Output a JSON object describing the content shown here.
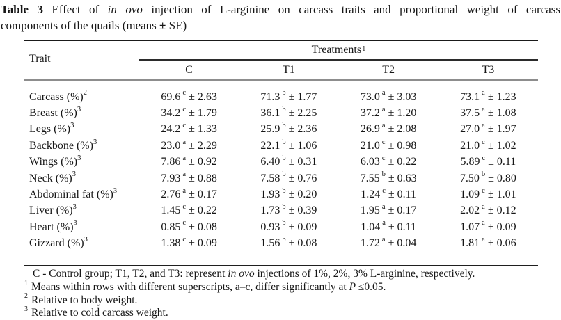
{
  "caption": {
    "label": "Table 3",
    "line1_pre": " Effect of ",
    "line1_italic": "in ovo",
    "line1_post": " injection of L-arginine on carcass traits and proportional weight of carcass",
    "line2_pre": "components of the quails (means ",
    "line2_bold": "±",
    "line2_post": " SE)"
  },
  "header": {
    "trait": "Trait",
    "treatments": "Treatments",
    "treatments_sup": "1",
    "columns": [
      "C",
      "T1",
      "T2",
      "T3"
    ]
  },
  "pm": "±",
  "rows": [
    {
      "trait": "Carcass (%)",
      "trait_sup": "2",
      "cells": [
        {
          "mean": "69.6",
          "sup": "c",
          "se": "2.63"
        },
        {
          "mean": "71.3",
          "sup": "b",
          "se": "1.77"
        },
        {
          "mean": "73.0",
          "sup": "a",
          "se": "3.03"
        },
        {
          "mean": "73.1",
          "sup": "a",
          "se": "1.23"
        }
      ]
    },
    {
      "trait": "Breast (%)",
      "trait_sup": "3",
      "cells": [
        {
          "mean": "34.2",
          "sup": "c",
          "se": "1.79"
        },
        {
          "mean": "36.1",
          "sup": "b",
          "se": "2.25"
        },
        {
          "mean": "37.2",
          "sup": "a",
          "se": "1.20"
        },
        {
          "mean": "37.5",
          "sup": "a",
          "se": "1.08"
        }
      ]
    },
    {
      "trait": "Legs (%)",
      "trait_sup": "3",
      "cells": [
        {
          "mean": "24.2",
          "sup": "c",
          "se": "1.33"
        },
        {
          "mean": "25.9",
          "sup": "b",
          "se": "2.36"
        },
        {
          "mean": "26.9",
          "sup": "a",
          "se": "2.08"
        },
        {
          "mean": "27.0",
          "sup": "a",
          "se": "1.97"
        }
      ]
    },
    {
      "trait": "Backbone (%)",
      "trait_sup": "3",
      "cells": [
        {
          "mean": "23.0",
          "sup": "a",
          "se": "2.29"
        },
        {
          "mean": "22.1",
          "sup": "b",
          "se": "1.06"
        },
        {
          "mean": "21.0",
          "sup": "c",
          "se": "0.98"
        },
        {
          "mean": "21.0",
          "sup": "c",
          "se": "1.02"
        }
      ]
    },
    {
      "trait": "Wings (%)",
      "trait_sup": "3",
      "cells": [
        {
          "mean": "7.86",
          "sup": "a",
          "se": "0.92"
        },
        {
          "mean": "6.40",
          "sup": "b",
          "se": "0.31"
        },
        {
          "mean": "6.03",
          "sup": "c",
          "se": "0.22"
        },
        {
          "mean": "5.89",
          "sup": "c",
          "se": "0.11"
        }
      ]
    },
    {
      "trait": "Neck (%)",
      "trait_sup": "3",
      "cells": [
        {
          "mean": "7.93",
          "sup": "a",
          "se": "0.88"
        },
        {
          "mean": "7.58",
          "sup": "b",
          "se": "0.76"
        },
        {
          "mean": "7.55",
          "sup": "b",
          "se": "0.63"
        },
        {
          "mean": "7.50",
          "sup": "b",
          "se": "0.80"
        }
      ]
    },
    {
      "trait": "Abdominal fat (%)",
      "trait_sup": "3",
      "cells": [
        {
          "mean": "2.76",
          "sup": "a",
          "se": "0.17"
        },
        {
          "mean": "1.93",
          "sup": "b",
          "se": "0.20"
        },
        {
          "mean": "1.24",
          "sup": "c",
          "se": "0.11"
        },
        {
          "mean": "1.09",
          "sup": "c",
          "se": "1.01"
        }
      ]
    },
    {
      "trait": "Liver (%)",
      "trait_sup": "3",
      "cells": [
        {
          "mean": "1.45",
          "sup": "c",
          "se": "0.22"
        },
        {
          "mean": "1.73",
          "sup": "b",
          "se": "0.39"
        },
        {
          "mean": "1.95",
          "sup": "a",
          "se": "0.17"
        },
        {
          "mean": "2.02",
          "sup": "a",
          "se": "0.12"
        }
      ]
    },
    {
      "trait": "Heart (%)",
      "trait_sup": "3",
      "cells": [
        {
          "mean": "0.85",
          "sup": "c",
          "se": "0.08"
        },
        {
          "mean": "0.93",
          "sup": "b",
          "se": "0.09"
        },
        {
          "mean": "1.04",
          "sup": "a",
          "se": "0.11"
        },
        {
          "mean": "1.07",
          "sup": "a",
          "se": "0.09"
        }
      ]
    },
    {
      "trait": "Gizzard (%)",
      "trait_sup": "3",
      "cells": [
        {
          "mean": "1.38",
          "sup": "c",
          "se": "0.09"
        },
        {
          "mean": "1.56",
          "sup": "b",
          "se": "0.08"
        },
        {
          "mean": "1.72",
          "sup": "a",
          "se": "0.04"
        },
        {
          "mean": "1.81",
          "sup": "a",
          "se": "0.06"
        }
      ]
    }
  ],
  "footnotes": [
    {
      "sup": "",
      "pre": "C - Control group; T1, T2, and T3: represent ",
      "italic": "in ovo",
      "post": " injections of 1%, 2%, 3% L-arginine, respectively."
    },
    {
      "sup": "1",
      "pre": "Means within rows with different superscripts, a–c, differ significantly at ",
      "italic": "P",
      "post": " ≤0.05."
    },
    {
      "sup": "2",
      "pre": "Relative to body weight.",
      "italic": "",
      "post": ""
    },
    {
      "sup": "3",
      "pre": "Relative to cold carcass weight.",
      "italic": "",
      "post": ""
    }
  ]
}
